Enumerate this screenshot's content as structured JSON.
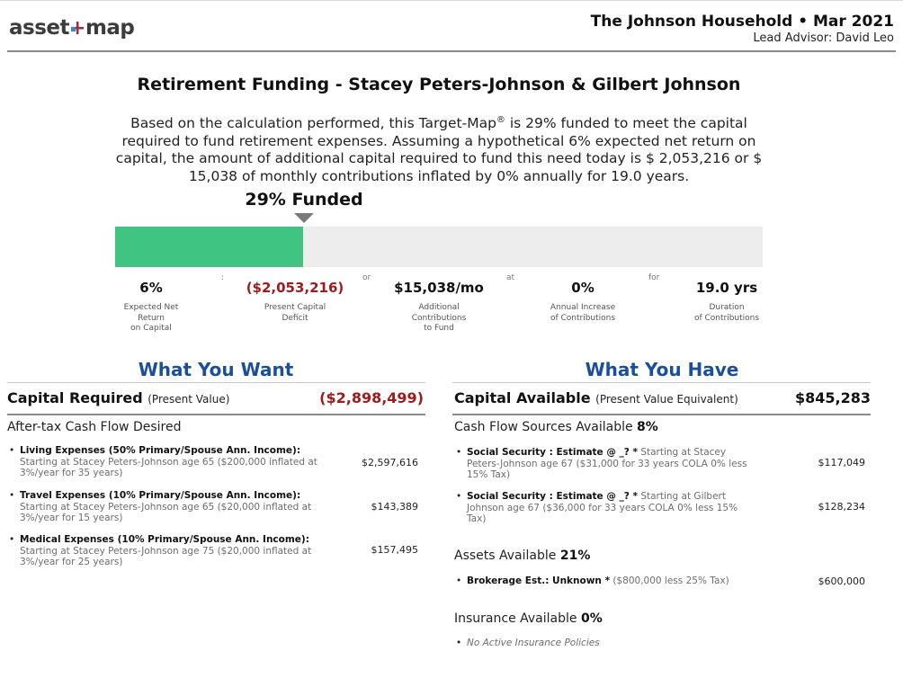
{
  "header": {
    "logo_left": "asset",
    "logo_plus": "+",
    "logo_right": "map",
    "household_title": "The Johnson Household • Mar 2021",
    "advisor": "Lead Advisor: David Leo"
  },
  "title": "Retirement Funding - Stacey Peters-Johnson & Gilbert Johnson",
  "summary": {
    "part1": "Based on the calculation performed, this Target-Map",
    "registered": "®",
    "part2": " is 29% funded to meet the capital required to fund retirement expenses. Assuming a hypothetical 6% expected net return on capital, the amount of additional capital required to fund this need today is $ 2,053,216 or $ 15,038 of monthly contributions inflated by 0% annually for 19.0 years."
  },
  "funding": {
    "label": "29% Funded",
    "funded_fraction": 0.29,
    "fill_color": "#3fc482",
    "track_color": "#ededed"
  },
  "stats": {
    "return": {
      "value": "6%",
      "label_1": "Expected Net",
      "label_2": "Return",
      "label_3": "on Capital"
    },
    "sep1": ":",
    "deficit": {
      "value": "($2,053,216)",
      "label_1": "Present Capital",
      "label_2": "Deficit"
    },
    "sep2": "or",
    "contrib": {
      "value": "$15,038/mo",
      "label_1": "Additional",
      "label_2": "Contributions",
      "label_3": "to Fund"
    },
    "sep3": "at",
    "increase": {
      "value": "0%",
      "label_1": "Annual Increase",
      "label_2": "of Contributions"
    },
    "sep4": "for",
    "duration": {
      "value": "19.0 yrs",
      "label_1": "Duration",
      "label_2": "of Contributions"
    }
  },
  "want": {
    "heading": "What You Want",
    "capital_title": "Capital Required",
    "capital_sub": "(Present Value)",
    "capital_value": "($2,898,499)",
    "subhead": "After-tax Cash Flow Desired",
    "items": [
      {
        "bold": "Living Expenses (50% Primary/Spouse Ann. Income):",
        "detail": "Starting at Stacey Peters-Johnson age 65 ($200,000 inflated at 3%/year for 35 years)",
        "value": "$2,597,616"
      },
      {
        "bold": "Travel Expenses (10% Primary/Spouse Ann. Income):",
        "detail": "Starting at Stacey Peters-Johnson age 65 ($20,000 inflated at 3%/year for 15 years)",
        "value": "$143,389"
      },
      {
        "bold": "Medical Expenses (10% Primary/Spouse Ann. Income):",
        "detail": "Starting at Stacey Peters-Johnson age 75 ($20,000 inflated at 3%/year for 25 years)",
        "value": "$157,495"
      }
    ]
  },
  "have": {
    "heading": "What You Have",
    "capital_title": "Capital Available",
    "capital_sub": "(Present Value Equivalent)",
    "capital_value": "$845,283",
    "cashflow_label": "Cash Flow Sources Available",
    "cashflow_pct": "8%",
    "ss_items": [
      {
        "bold": "Social Security : Estimate @ _? *",
        "detail": " Starting at Stacey Peters-Johnson age 67 ($31,000 for 33 years COLA 0% less 15% Tax)",
        "value": "$117,049"
      },
      {
        "bold": "Social Security : Estimate @ _? *",
        "detail": " Starting at Gilbert Johnson age 67 ($36,000 for 33 years COLA 0% less 15% Tax)",
        "value": "$128,234"
      }
    ],
    "assets_label": "Assets Available",
    "assets_pct": "21%",
    "asset_item": {
      "bold": "Brokerage Est.: Unknown *",
      "detail": " ($800,000 less 25% Tax)",
      "value": "$600,000"
    },
    "insurance_label": "Insurance Available",
    "insurance_pct": "0%",
    "insurance_note": "No Active Insurance Policies"
  },
  "bullet": "•"
}
